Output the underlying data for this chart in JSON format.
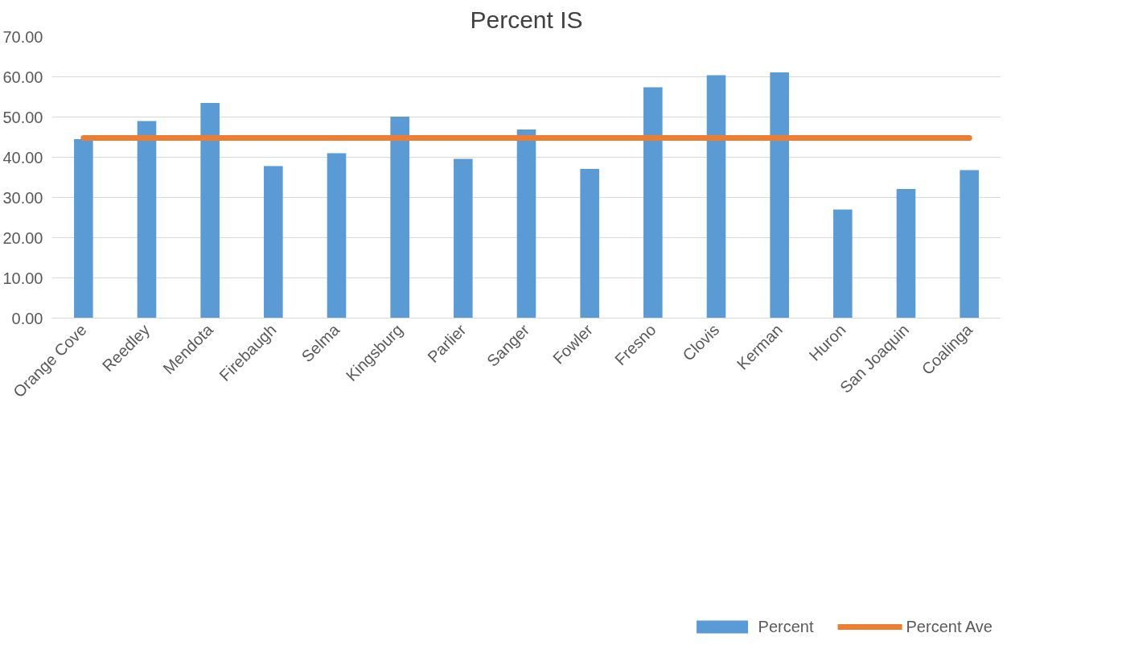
{
  "chart_data": {
    "type": "bar",
    "title": "Percent IS",
    "categories": [
      "Orange Cove",
      "Reedley",
      "Mendota",
      "Firebaugh",
      "Selma",
      "Kingsburg",
      "Parlier",
      "Sanger",
      "Fowler",
      "Fresno",
      "Clovis",
      "Kerman",
      "Huron",
      "San Joaquin",
      "Coalinga"
    ],
    "series": [
      {
        "name": "Percent",
        "color": "#5b9bd5",
        "values": [
          44.5,
          49.0,
          53.5,
          37.8,
          41.0,
          50.1,
          39.6,
          46.9,
          37.1,
          57.4,
          60.4,
          61.1,
          27.0,
          32.1,
          36.8
        ]
      },
      {
        "name": "Percent Ave",
        "type": "line",
        "color": "#ed7d31",
        "values": [
          44.8,
          44.8,
          44.8,
          44.8,
          44.8,
          44.8,
          44.8,
          44.8,
          44.8,
          44.8,
          44.8,
          44.8,
          44.8,
          44.8,
          44.8
        ]
      }
    ],
    "ylim": [
      0,
      70
    ],
    "yticks": [
      {
        "value": 0,
        "label": "0.00"
      },
      {
        "value": 10,
        "label": "10.00"
      },
      {
        "value": 20,
        "label": "20.00"
      },
      {
        "value": 30,
        "label": "30.00"
      },
      {
        "value": 40,
        "label": "40.00"
      },
      {
        "value": 50,
        "label": "50.00"
      },
      {
        "value": 60,
        "label": "60.00"
      },
      {
        "value": 70,
        "label": "70.00"
      }
    ],
    "grid": "y",
    "legend": "bottom"
  }
}
